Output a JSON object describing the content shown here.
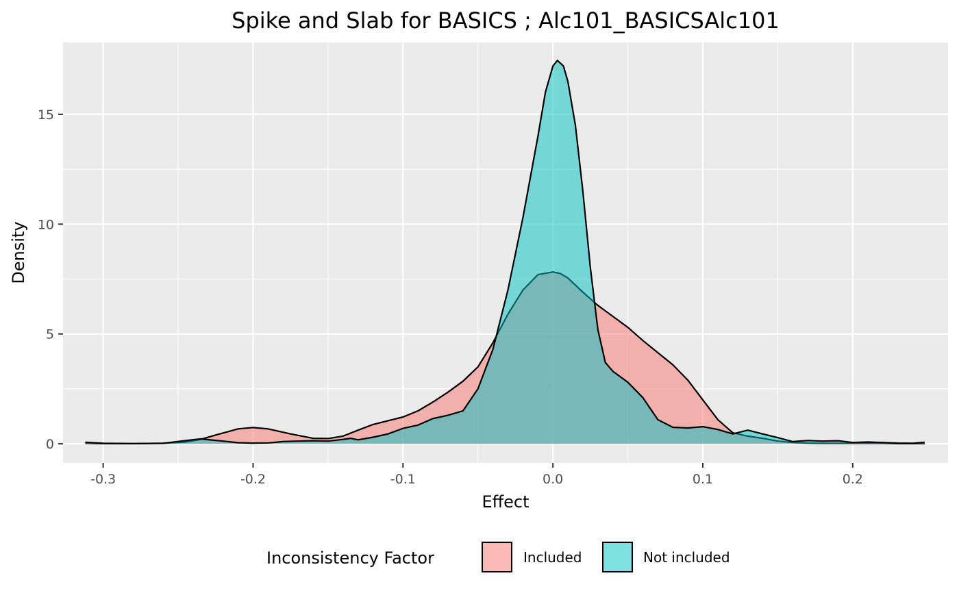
{
  "chart_data": {
    "type": "area",
    "title": "Spike and Slab for BASICS ; Alc101_BASICSAlc101",
    "xlabel": "Effect",
    "ylabel": "Density",
    "xlim": [
      -0.3268,
      0.2636
    ],
    "ylim": [
      -0.87,
      18.27
    ],
    "x_ticks": [
      -0.3,
      -0.2,
      -0.1,
      0.0,
      0.1,
      0.2
    ],
    "x_tick_labels": [
      "-0.3",
      "-0.2",
      "-0.1",
      "0.0",
      "0.1",
      "0.2"
    ],
    "y_ticks": [
      0,
      5,
      10,
      15
    ],
    "y_tick_labels": [
      "0",
      "5",
      "10",
      "15"
    ],
    "grid": true,
    "legend": {
      "title": "Inconsistency Factor",
      "position": "bottom",
      "entries": [
        "Included",
        "Not included"
      ]
    },
    "series": [
      {
        "name": "Included",
        "color": "#F8766D",
        "x": [
          -0.312,
          -0.3,
          -0.28,
          -0.26,
          -0.245,
          -0.235,
          -0.225,
          -0.21,
          -0.2,
          -0.19,
          -0.175,
          -0.16,
          -0.15,
          -0.14,
          -0.13,
          -0.12,
          -0.11,
          -0.1,
          -0.09,
          -0.08,
          -0.07,
          -0.06,
          -0.05,
          -0.04,
          -0.03,
          -0.02,
          -0.01,
          0.0,
          0.005,
          0.01,
          0.02,
          0.03,
          0.04,
          0.05,
          0.06,
          0.07,
          0.08,
          0.09,
          0.1,
          0.11,
          0.12,
          0.13,
          0.14,
          0.15,
          0.16,
          0.17,
          0.18,
          0.19,
          0.2,
          0.21,
          0.22,
          0.23,
          0.24,
          0.248
        ],
        "y": [
          0.02,
          0.01,
          0.01,
          0.02,
          0.08,
          0.2,
          0.4,
          0.68,
          0.74,
          0.68,
          0.45,
          0.25,
          0.24,
          0.35,
          0.62,
          0.88,
          1.05,
          1.22,
          1.5,
          1.9,
          2.35,
          2.85,
          3.5,
          4.6,
          5.9,
          7.0,
          7.7,
          7.82,
          7.75,
          7.55,
          6.9,
          6.3,
          5.8,
          5.3,
          4.7,
          4.15,
          3.6,
          2.9,
          2.0,
          1.1,
          0.5,
          0.35,
          0.25,
          0.12,
          0.06,
          0.03,
          0.02,
          0.02,
          0.02,
          0.02,
          0.02,
          0.01,
          0.01,
          0.01
        ]
      },
      {
        "name": "Not included",
        "color": "#00BFC4",
        "x": [
          -0.312,
          -0.3,
          -0.28,
          -0.26,
          -0.245,
          -0.235,
          -0.22,
          -0.21,
          -0.2,
          -0.19,
          -0.18,
          -0.17,
          -0.16,
          -0.15,
          -0.14,
          -0.135,
          -0.13,
          -0.12,
          -0.11,
          -0.1,
          -0.09,
          -0.08,
          -0.07,
          -0.06,
          -0.05,
          -0.04,
          -0.03,
          -0.02,
          -0.01,
          -0.005,
          0.0,
          0.003,
          0.007,
          0.01,
          0.015,
          0.02,
          0.025,
          0.03,
          0.035,
          0.04,
          0.05,
          0.06,
          0.065,
          0.07,
          0.08,
          0.09,
          0.1,
          0.11,
          0.12,
          0.13,
          0.14,
          0.15,
          0.16,
          0.17,
          0.18,
          0.19,
          0.2,
          0.21,
          0.22,
          0.23,
          0.24,
          0.248
        ],
        "y": [
          0.07,
          0.02,
          0.01,
          0.02,
          0.15,
          0.22,
          0.12,
          0.05,
          0.03,
          0.04,
          0.1,
          0.12,
          0.14,
          0.12,
          0.2,
          0.25,
          0.18,
          0.3,
          0.45,
          0.7,
          0.85,
          1.15,
          1.3,
          1.5,
          2.5,
          4.3,
          7.0,
          10.3,
          14.0,
          16.0,
          17.2,
          17.45,
          17.2,
          16.5,
          14.5,
          11.5,
          8.0,
          5.2,
          3.7,
          3.3,
          2.8,
          2.1,
          1.6,
          1.1,
          0.75,
          0.72,
          0.78,
          0.65,
          0.45,
          0.62,
          0.45,
          0.28,
          0.1,
          0.15,
          0.12,
          0.14,
          0.06,
          0.08,
          0.06,
          0.03,
          0.02,
          0.07
        ]
      }
    ]
  }
}
